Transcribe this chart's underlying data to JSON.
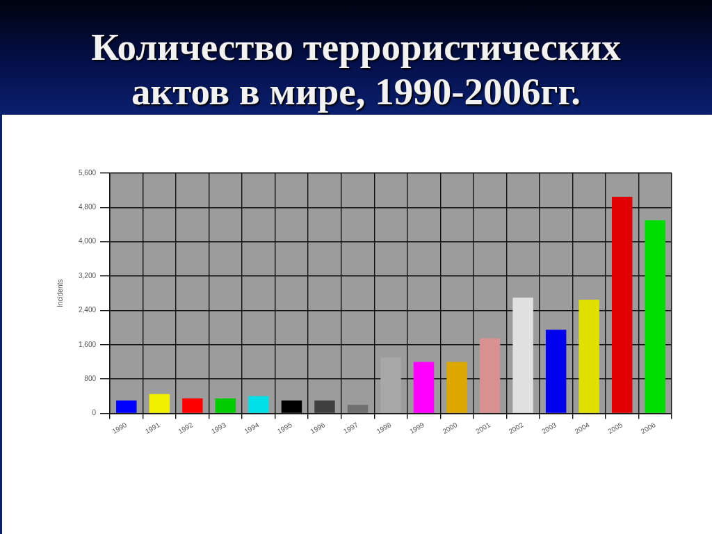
{
  "chart_data": {
    "type": "bar",
    "title": "Количество террористических актов в мире, 1990-2006гг.",
    "ylabel": "Incidents",
    "categories": [
      "1990",
      "1991",
      "1992",
      "1993",
      "1994",
      "1995",
      "1996",
      "1997",
      "1998",
      "1999",
      "2000",
      "2001",
      "2002",
      "2003",
      "2004",
      "2005",
      "2006"
    ],
    "values": [
      300,
      450,
      350,
      350,
      400,
      300,
      300,
      200,
      1300,
      1200,
      1200,
      1750,
      2700,
      1950,
      2650,
      5050,
      4500
    ],
    "colors": [
      "#0000ff",
      "#f0f000",
      "#ff0000",
      "#00cc00",
      "#00e0e8",
      "#000000",
      "#404040",
      "#707070",
      "#a8a8a8",
      "#ff00ff",
      "#dca800",
      "#d89090",
      "#e0e0e0",
      "#0000ee",
      "#e0e000",
      "#e00000",
      "#00dd00"
    ],
    "ylim": [
      0,
      5600
    ],
    "yticks": [
      0,
      800,
      {
        "value": 1600,
        "label": "1,600"
      },
      {
        "value": 2400,
        "label": "2,400"
      },
      {
        "value": 3200,
        "label": "3,200"
      },
      {
        "value": 4000,
        "label": "4,000"
      },
      {
        "value": 4800,
        "label": "4,800"
      },
      {
        "value": 5600,
        "label": "5,600"
      }
    ],
    "grid": true
  }
}
